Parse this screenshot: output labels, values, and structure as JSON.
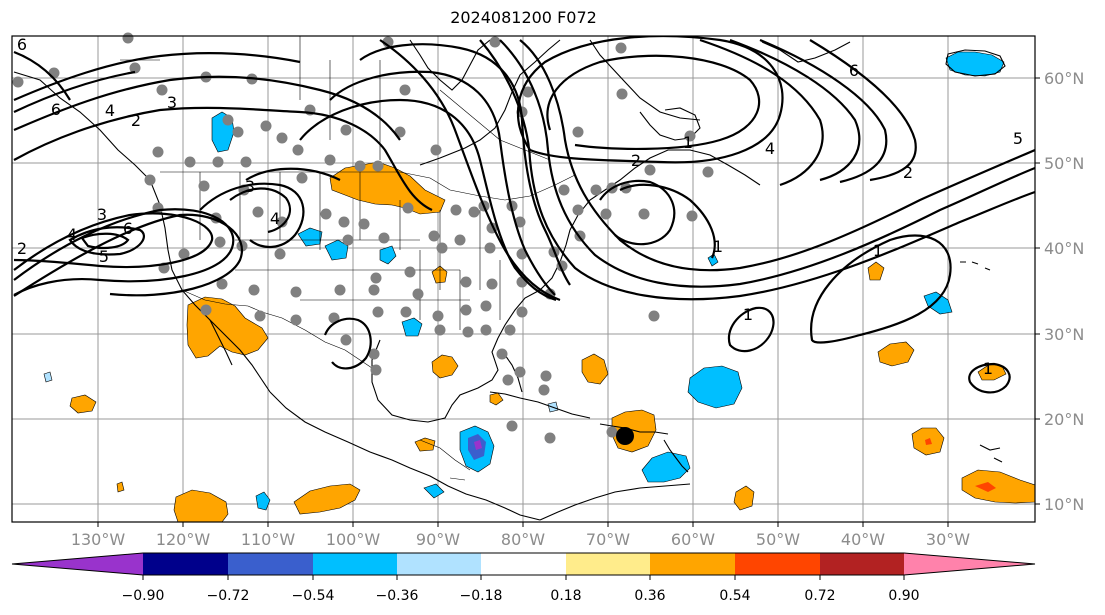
{
  "title": "2024081200 F072",
  "colors": {
    "contour": "#000000",
    "grid": "#999999",
    "station_dot": "#808080",
    "marker": "#000000",
    "bins": [
      "#9933cc",
      "#00008b",
      "#3a5fcd",
      "#00bfff",
      "#b0e2ff",
      "#ffffff",
      "#ffec8b",
      "#ffa500",
      "#ff4500",
      "#b22222",
      "#ff82ab"
    ]
  },
  "longitude_labels": [
    "130°W",
    "120°W",
    "110°W",
    "100°W",
    "90°W",
    "80°W",
    "70°W",
    "60°W",
    "50°W",
    "40°W",
    "30°W"
  ],
  "latitude_labels": [
    "60°N",
    "50°N",
    "40°N",
    "30°N",
    "20°N",
    "10°N"
  ],
  "colorbar_ticks": [
    "−0.90",
    "−0.72",
    "−0.54",
    "−0.36",
    "−0.18",
    "0.18",
    "0.36",
    "0.54",
    "0.72",
    "0.90"
  ],
  "contour_labels": [
    "6",
    "6",
    "4",
    "3",
    "2",
    "3",
    "4",
    "3",
    "4",
    "6",
    "5",
    "2",
    "2",
    "1",
    "4",
    "6",
    "5",
    "2",
    "1",
    "1",
    "1",
    "1"
  ],
  "marker": "storm-center-marker"
}
